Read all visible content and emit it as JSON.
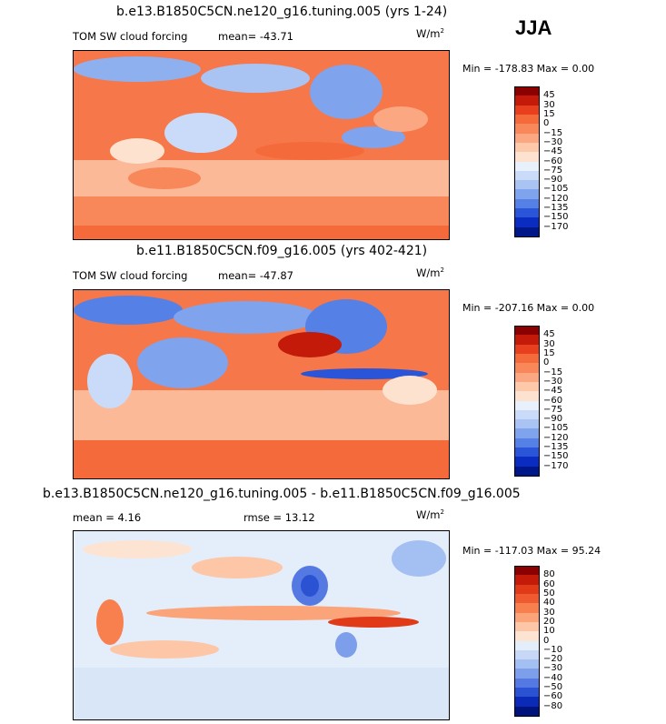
{
  "season": "JJA",
  "units_base": "W/m",
  "units_exp": "2",
  "panels": [
    {
      "title": "b.e13.B1850C5CN.ne120_g16.tuning.005 (yrs 1-24)",
      "variable": "TOM SW cloud forcing",
      "mean_label": "mean= -43.71",
      "stats_label": "Min = -178.83 Max =    0.00"
    },
    {
      "title": "b.e11.B1850C5CN.f09_g16.005 (yrs 402-421)",
      "variable": "TOM SW cloud forcing",
      "mean_label": "mean= -47.87",
      "stats_label": "Min = -207.16 Max =    0.00"
    },
    {
      "title": "b.e13.B1850C5CN.ne120_g16.tuning.005 - b.e11.B1850C5CN.f09_g16.005",
      "mean_label": "mean =    4.16",
      "rmse_label": "rmse =   13.12",
      "stats_label": "Min = -117.03 Max =  95.24"
    }
  ],
  "chart_data": [
    {
      "type": "heatmap",
      "title": "b.e13.B1850C5CN.ne120_g16.tuning.005 (yrs 1-24)",
      "variable": "TOM SW cloud forcing",
      "units": "W/m^2",
      "mean": -43.71,
      "min": -178.83,
      "max": 0.0,
      "colorbar_levels": [
        "45",
        "30",
        "15",
        "0",
        "-15",
        "-30",
        "-45",
        "-60",
        "-75",
        "-90",
        "-105",
        "-120",
        "-135",
        "-150",
        "-170"
      ],
      "colorbar_colors": [
        "#8b0000",
        "#c41a0a",
        "#e8401e",
        "#f56a3a",
        "#f8875a",
        "#fba882",
        "#fdc9aa",
        "#fde3cf",
        "#e8f0fb",
        "#c9dbf8",
        "#a9c3f3",
        "#7fa3ec",
        "#5580e5",
        "#2a55d8",
        "#0a2cc0",
        "#00178a"
      ]
    },
    {
      "type": "heatmap",
      "title": "b.e11.B1850C5CN.f09_g16.005 (yrs 402-421)",
      "variable": "TOM SW cloud forcing",
      "units": "W/m^2",
      "mean": -47.87,
      "min": -207.16,
      "max": 0.0,
      "colorbar_levels": [
        "45",
        "30",
        "15",
        "0",
        "-15",
        "-30",
        "-45",
        "-60",
        "-75",
        "-90",
        "-105",
        "-120",
        "-135",
        "-150",
        "-170"
      ],
      "colorbar_colors": [
        "#8b0000",
        "#c41a0a",
        "#e8401e",
        "#f56a3a",
        "#f8875a",
        "#fba882",
        "#fdc9aa",
        "#fde3cf",
        "#e8f0fb",
        "#c9dbf8",
        "#a9c3f3",
        "#7fa3ec",
        "#5580e5",
        "#2a55d8",
        "#0a2cc0",
        "#00178a"
      ]
    },
    {
      "type": "heatmap",
      "title": "b.e13.B1850C5CN.ne120_g16.tuning.005 - b.e11.B1850C5CN.f09_g16.005",
      "units": "W/m^2",
      "mean": 4.16,
      "rmse": 13.12,
      "min": -117.03,
      "max": 95.24,
      "colorbar_levels": [
        "80",
        "60",
        "50",
        "40",
        "30",
        "20",
        "10",
        "0",
        "-10",
        "-20",
        "-30",
        "-40",
        "-50",
        "-60",
        "-80"
      ],
      "colorbar_colors": [
        "#8b0000",
        "#c41a0a",
        "#e03a18",
        "#f05a30",
        "#f8804f",
        "#fba47a",
        "#fdc6a6",
        "#fde4d2",
        "#e4eefb",
        "#c6d8f6",
        "#a4bff2",
        "#7d9eeb",
        "#5479e2",
        "#2c52d4",
        "#0c2ab8",
        "#00137c"
      ]
    }
  ]
}
